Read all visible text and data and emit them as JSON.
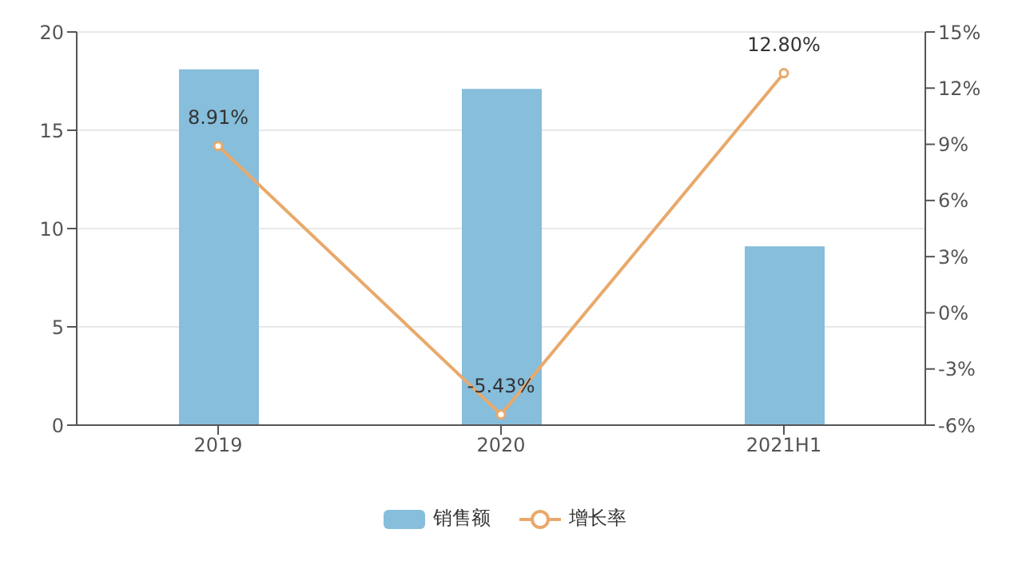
{
  "chart_data": {
    "type": "bar",
    "categories": [
      "2019",
      "2020",
      "2021H1"
    ],
    "series": [
      {
        "name": "销售额",
        "color": "#86bedc",
        "values": [
          18.1,
          17.1,
          9.1
        ]
      },
      {
        "name": "增长率",
        "type": "line",
        "axis": "y2",
        "color": "#e8a96b",
        "values": [
          8.91,
          -5.43,
          12.8
        ],
        "value_labels": [
          "8.91%",
          "-5.43%",
          "12.80%"
        ]
      }
    ],
    "ylim": [
      0,
      20
    ],
    "yticks": [
      0,
      5,
      10,
      15,
      20
    ],
    "y2lim": [
      -6,
      15
    ],
    "y2ticks": [
      {
        "value": -6,
        "label": "-6%"
      },
      {
        "value": -3,
        "label": "-3%"
      },
      {
        "value": 0,
        "label": "0%"
      },
      {
        "value": 3,
        "label": "3%"
      },
      {
        "value": 6,
        "label": "6%"
      },
      {
        "value": 9,
        "label": "9%"
      },
      {
        "value": 12,
        "label": "12%"
      },
      {
        "value": 15,
        "label": "15%"
      }
    ],
    "grid": "y",
    "legend": "bottom",
    "marker": "circle",
    "line_style": "solid"
  }
}
